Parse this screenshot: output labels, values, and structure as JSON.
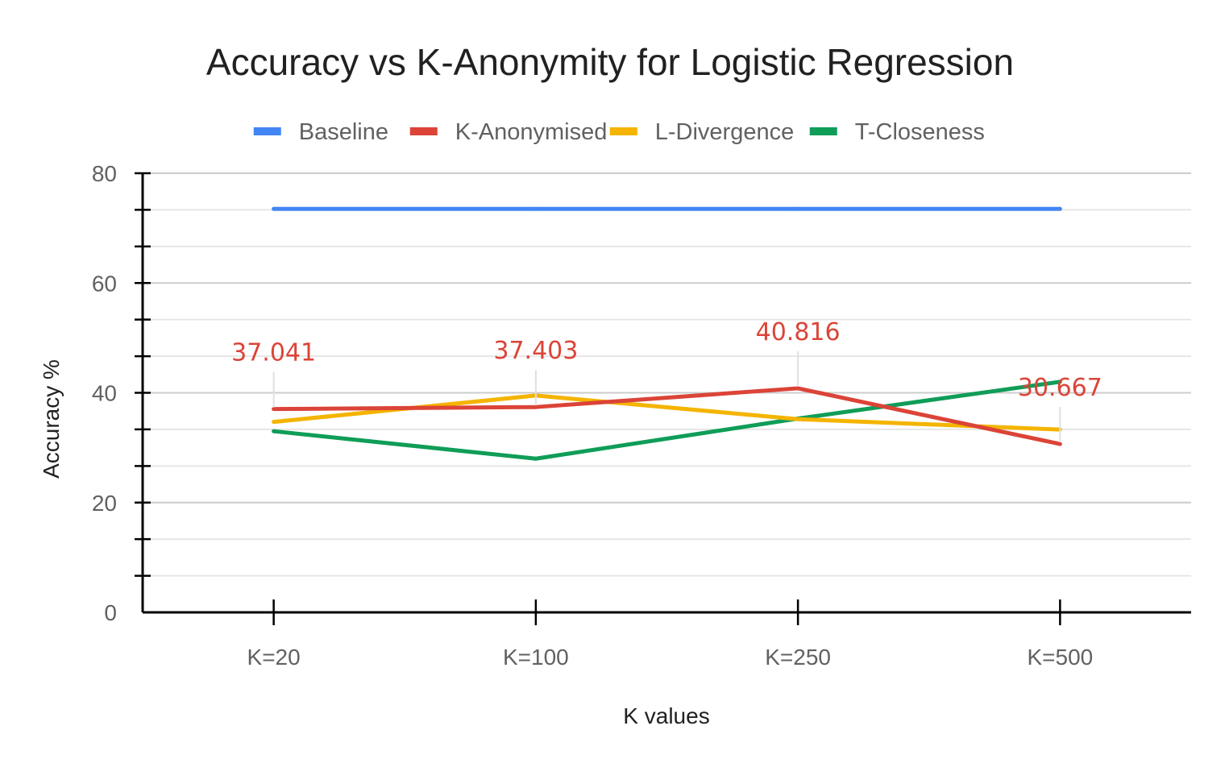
{
  "chart_data": {
    "type": "line",
    "title": "Accuracy vs K-Anonymity for Logistic Regression",
    "xlabel": "K values",
    "ylabel": "Accuracy %",
    "categories": [
      "K=20",
      "K=100",
      "K=250",
      "K=500"
    ],
    "ylim": [
      0,
      80
    ],
    "yticks": [
      0,
      20,
      40,
      60,
      80
    ],
    "grid": true,
    "legend_position": "top",
    "series": [
      {
        "name": "Baseline",
        "color": "#4285f4",
        "values": [
          73.5,
          73.5,
          73.5,
          73.5
        ]
      },
      {
        "name": "K-Anonymised",
        "color": "#db4437",
        "values": [
          37.041,
          37.403,
          40.816,
          30.667
        ],
        "data_labels": [
          "37.041",
          "37.403",
          "40.816",
          "30.667"
        ]
      },
      {
        "name": "L-Divergence",
        "color": "#f4b400",
        "values": [
          34.7,
          39.5,
          35.2,
          33.3
        ]
      },
      {
        "name": "T-Closeness",
        "color": "#0f9d58",
        "values": [
          33.0,
          28.0,
          35.3,
          42.0
        ]
      }
    ]
  }
}
